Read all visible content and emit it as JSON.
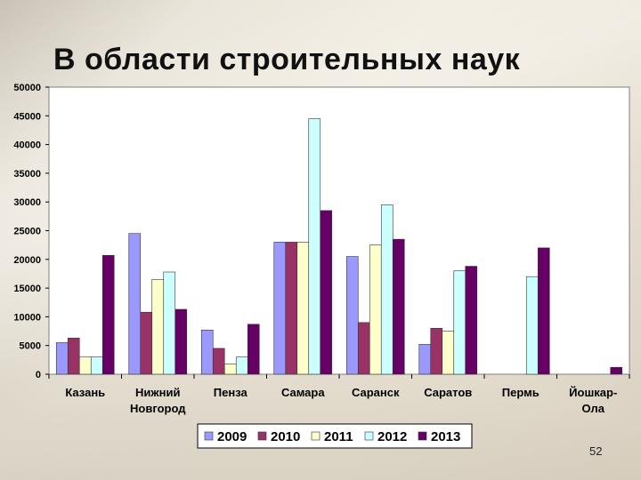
{
  "slide": {
    "title": "В области строительных наук",
    "page_number": "52"
  },
  "chart_data": {
    "type": "bar",
    "title": "В области строительных наук",
    "categories": [
      "Казань",
      "Нижний Новгород",
      "Пенза",
      "Самара",
      "Саранск",
      "Саратов",
      "Пермь",
      "Йошкар-Ола"
    ],
    "category_lines": [
      [
        "Казань"
      ],
      [
        "Нижний",
        "Новгород"
      ],
      [
        "Пенза"
      ],
      [
        "Самара"
      ],
      [
        "Саранск"
      ],
      [
        "Саратов"
      ],
      [
        "Пермь"
      ],
      [
        "Йошкар-",
        "Ола"
      ]
    ],
    "series": [
      {
        "name": "2009",
        "color": "#9999ff",
        "values": [
          5500,
          24500,
          7700,
          23000,
          20500,
          5200,
          0,
          0
        ]
      },
      {
        "name": "2010",
        "color": "#993366",
        "values": [
          6300,
          10800,
          4500,
          23000,
          9000,
          8000,
          0,
          0
        ]
      },
      {
        "name": "2011",
        "color": "#ffffcc",
        "values": [
          3000,
          16500,
          1800,
          23000,
          22500,
          7500,
          0,
          0
        ]
      },
      {
        "name": "2012",
        "color": "#ccffff",
        "values": [
          3000,
          17800,
          3000,
          44500,
          29500,
          18000,
          17000,
          0
        ]
      },
      {
        "name": "2013",
        "color": "#660066",
        "values": [
          20700,
          11300,
          8700,
          28500,
          23500,
          18800,
          22000,
          1200
        ]
      }
    ],
    "ylim": [
      0,
      50000
    ],
    "yticks": [
      0,
      5000,
      10000,
      15000,
      20000,
      25000,
      30000,
      35000,
      40000,
      45000,
      50000
    ],
    "legend": "bottom",
    "grid": false
  }
}
